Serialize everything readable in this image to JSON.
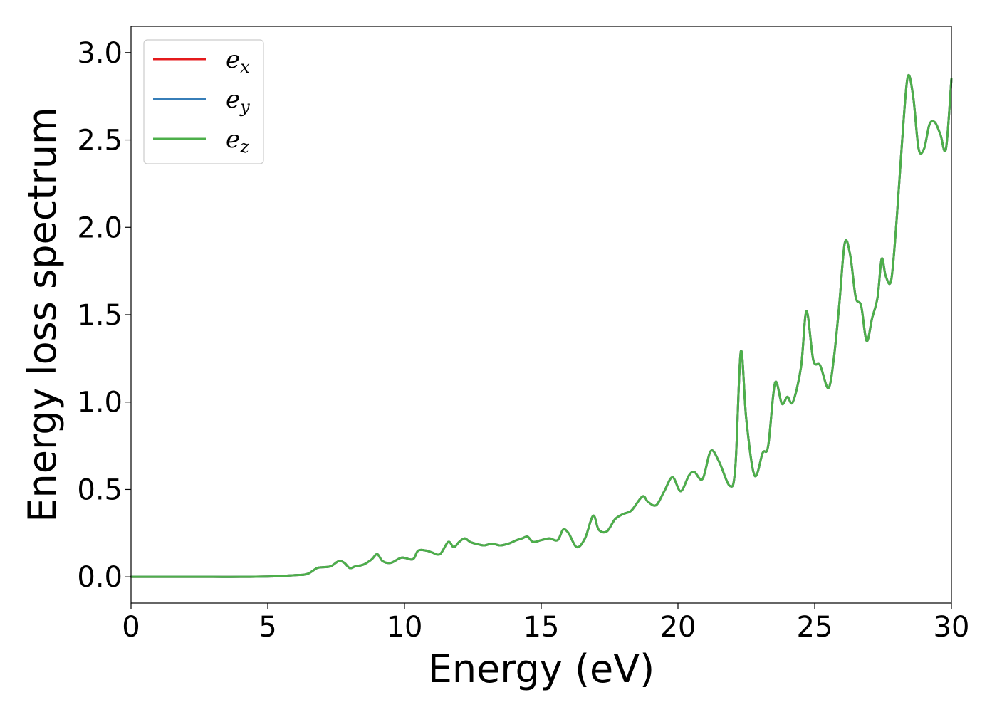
{
  "chart_data": {
    "type": "line",
    "xlabel": "Energy (eV)",
    "ylabel": "Energy loss spectrum",
    "xlim": [
      0,
      30
    ],
    "ylim": [
      -0.15,
      3.15
    ],
    "xticks": [
      0,
      5,
      10,
      15,
      20,
      25,
      30
    ],
    "xtick_labels": [
      "0",
      "5",
      "10",
      "15",
      "20",
      "25",
      "30"
    ],
    "yticks": [
      0.0,
      0.5,
      1.0,
      1.5,
      2.0,
      2.5,
      3.0
    ],
    "ytick_labels": [
      "0.0",
      "0.5",
      "1.0",
      "1.5",
      "2.0",
      "2.5",
      "3.0"
    ],
    "grid": false,
    "legend_position": "top-left",
    "x": [
      0,
      1,
      2,
      3,
      4,
      5,
      5.5,
      6.0,
      6.3,
      6.5,
      6.8,
      7.0,
      7.3,
      7.6,
      7.8,
      8.0,
      8.2,
      8.5,
      8.8,
      9.0,
      9.2,
      9.5,
      9.9,
      10.3,
      10.5,
      10.8,
      11.0,
      11.3,
      11.6,
      11.8,
      12.0,
      12.2,
      12.4,
      12.6,
      12.9,
      13.2,
      13.5,
      13.8,
      14.1,
      14.3,
      14.5,
      14.7,
      15.0,
      15.3,
      15.6,
      15.8,
      16.0,
      16.3,
      16.6,
      16.9,
      17.1,
      17.4,
      17.7,
      18.0,
      18.3,
      18.7,
      18.9,
      19.2,
      19.5,
      19.8,
      20.1,
      20.4,
      20.6,
      20.9,
      21.2,
      21.5,
      21.9,
      22.1,
      22.3,
      22.5,
      22.8,
      23.1,
      23.3,
      23.55,
      23.8,
      24.0,
      24.2,
      24.5,
      24.7,
      24.95,
      25.2,
      25.5,
      25.7,
      25.9,
      26.1,
      26.3,
      26.5,
      26.7,
      26.9,
      27.1,
      27.3,
      27.45,
      27.6,
      27.8,
      28.0,
      28.2,
      28.4,
      28.6,
      28.8,
      29.0,
      29.2,
      29.4,
      29.6,
      29.8,
      30.0
    ],
    "y": [
      0.0,
      0.0,
      0.0,
      0.0,
      0.0,
      0.002,
      0.005,
      0.01,
      0.012,
      0.02,
      0.05,
      0.055,
      0.06,
      0.09,
      0.08,
      0.05,
      0.06,
      0.07,
      0.1,
      0.13,
      0.09,
      0.08,
      0.11,
      0.1,
      0.15,
      0.15,
      0.14,
      0.13,
      0.2,
      0.17,
      0.2,
      0.22,
      0.2,
      0.19,
      0.18,
      0.19,
      0.18,
      0.19,
      0.21,
      0.22,
      0.23,
      0.2,
      0.21,
      0.22,
      0.21,
      0.27,
      0.25,
      0.17,
      0.22,
      0.35,
      0.27,
      0.26,
      0.33,
      0.36,
      0.38,
      0.46,
      0.43,
      0.41,
      0.49,
      0.57,
      0.49,
      0.58,
      0.6,
      0.56,
      0.72,
      0.66,
      0.52,
      0.63,
      1.29,
      0.9,
      0.58,
      0.71,
      0.75,
      1.11,
      0.99,
      1.03,
      1.0,
      1.2,
      1.52,
      1.24,
      1.21,
      1.08,
      1.25,
      1.56,
      1.91,
      1.84,
      1.6,
      1.55,
      1.35,
      1.48,
      1.6,
      1.82,
      1.72,
      1.7,
      2.05,
      2.5,
      2.86,
      2.75,
      2.45,
      2.45,
      2.59,
      2.6,
      2.53,
      2.45,
      2.85
    ],
    "series": [
      {
        "name": "e_x",
        "label_base": "e",
        "label_sub": "x",
        "color": "#e41a1c"
      },
      {
        "name": "e_y",
        "label_base": "e",
        "label_sub": "y",
        "color": "#377eb8"
      },
      {
        "name": "e_z",
        "label_base": "e",
        "label_sub": "z",
        "color": "#4daf4a"
      }
    ]
  }
}
